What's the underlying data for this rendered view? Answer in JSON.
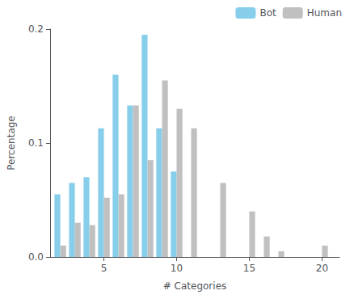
{
  "chart_data": {
    "type": "bar",
    "xlabel": "# Categories",
    "ylabel": "Percentage",
    "x": [
      2,
      3,
      4,
      5,
      6,
      7,
      8,
      9,
      10,
      11,
      13,
      15,
      16,
      17,
      20
    ],
    "series": [
      {
        "name": "Bot",
        "color": "#87CEEB",
        "values": [
          0.055,
          0.065,
          0.07,
          0.113,
          0.16,
          0.133,
          0.195,
          0.113,
          0.075,
          0.0,
          0.0,
          0.0,
          0.0,
          0.0,
          0.0
        ]
      },
      {
        "name": "Human",
        "color": "#C0C0C0",
        "values": [
          0.01,
          0.03,
          0.028,
          0.052,
          0.055,
          0.133,
          0.085,
          0.155,
          0.13,
          0.113,
          0.065,
          0.04,
          0.018,
          0.005,
          0.01
        ]
      }
    ],
    "xlim": [
      1.3,
      21.2
    ],
    "xticks": [
      5,
      10,
      15,
      20
    ],
    "ylim": [
      0,
      0.2
    ],
    "yticks": [
      {
        "value": 0,
        "label": "0.0"
      },
      0.1,
      0.2
    ],
    "legend": "upper right",
    "grid": false
  }
}
